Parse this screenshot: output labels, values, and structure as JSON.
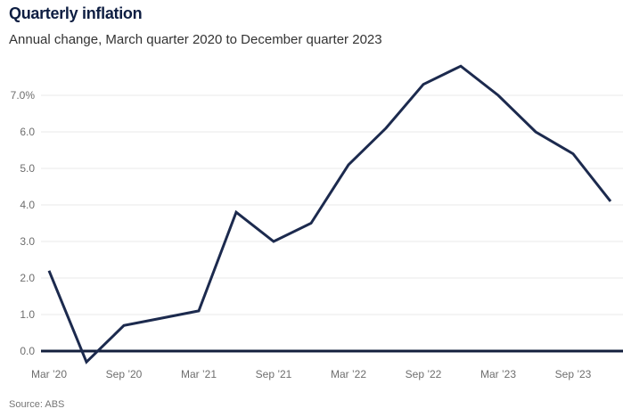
{
  "colors": {
    "title": "#0e1e42",
    "subtitle": "#333333",
    "line": "#1c2a4e",
    "zero_axis": "#131f3d",
    "grid": "#e8e8e8",
    "tick": "#6e6e6e",
    "source": "#757575"
  },
  "chart_data": {
    "type": "line",
    "title": "Quarterly inflation",
    "subtitle": "Annual change, March quarter 2020 to December quarter 2023",
    "source": "Source: ABS",
    "categories": [
      "Mar ’20",
      "Jun ’20",
      "Sep ’20",
      "Dec ’20",
      "Mar ’21",
      "Jun ’21",
      "Sep ’21",
      "Dec ’21",
      "Mar ’22",
      "Jun ’22",
      "Sep ’22",
      "Dec ’22",
      "Mar ’23",
      "Jun ’23",
      "Sep ’23",
      "Dec ’23"
    ],
    "values": [
      2.2,
      -0.3,
      0.7,
      0.9,
      1.1,
      3.8,
      3.0,
      3.5,
      5.1,
      6.1,
      7.3,
      7.8,
      7.0,
      6.0,
      5.4,
      4.1
    ],
    "xlabel": "",
    "ylabel": "",
    "ylim": [
      -0.5,
      8.0
    ],
    "grid": "horizontal",
    "legend": "none",
    "y_ticks": [
      {
        "v": 0,
        "label": "0.0"
      },
      {
        "v": 1,
        "label": "1.0"
      },
      {
        "v": 2,
        "label": "2.0"
      },
      {
        "v": 3,
        "label": "3.0"
      },
      {
        "v": 4,
        "label": "4.0"
      },
      {
        "v": 5,
        "label": "5.0"
      },
      {
        "v": 6,
        "label": "6.0"
      },
      {
        "v": 7,
        "label": "7.0%"
      }
    ],
    "x_tick_indices": [
      0,
      2,
      4,
      6,
      8,
      10,
      12,
      14
    ]
  }
}
